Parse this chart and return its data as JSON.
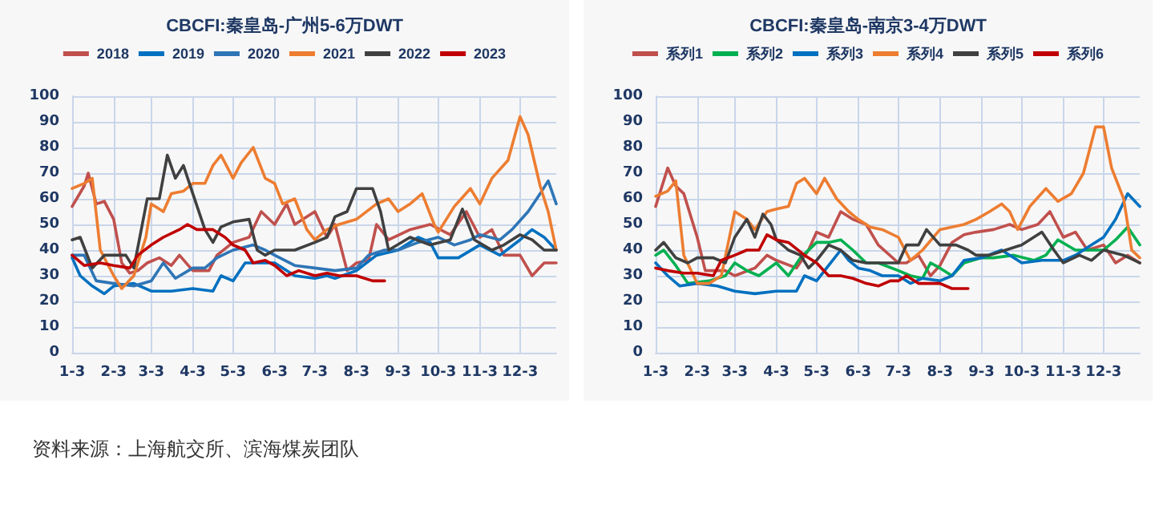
{
  "chart_data": [
    {
      "type": "line",
      "title": "CBCFI:秦皇岛-广州5-6万DWT",
      "xlim": [
        "--01-03",
        "--12-30"
      ],
      "xticks": [
        {
          "value": "--01-03",
          "label": "1-3"
        },
        {
          "value": "--02-03",
          "label": "2-3"
        },
        {
          "value": "--03-03",
          "label": "3-3"
        },
        {
          "value": "--04-03",
          "label": "4-3"
        },
        {
          "value": "--05-03",
          "label": "5-3"
        },
        {
          "value": "--06-03",
          "label": "6-3"
        },
        {
          "value": "--07-03",
          "label": "7-3"
        },
        {
          "value": "--08-03",
          "label": "8-3"
        },
        {
          "value": "--09-03",
          "label": "9-3"
        },
        {
          "value": "--10-03",
          "label": "10-3"
        },
        {
          "value": "--11-03",
          "label": "11-3"
        },
        {
          "value": "--12-03",
          "label": "12-3"
        }
      ],
      "ylim": [
        0,
        100
      ],
      "yticks": [
        0,
        10,
        20,
        30,
        40,
        50,
        60,
        70,
        80,
        90,
        100
      ],
      "grid": true,
      "legend": "top",
      "marker": "none",
      "line_style": "solid",
      "annotations": [
        "资料来源：上海航交所、滨海煤炭团队"
      ],
      "series": [
        {
          "name": "2018",
          "color": "#c0504d",
          "x": [
            "--01-03",
            "--01-12",
            "--01-15",
            "--01-21",
            "--01-27",
            "--02-03",
            "--02-09",
            "--02-15",
            "--02-21",
            "--02-28",
            "--03-09",
            "--03-18",
            "--03-24",
            "--04-03",
            "--04-15",
            "--04-21",
            "--05-03",
            "--05-15",
            "--05-24",
            "--06-03",
            "--06-12",
            "--06-18",
            "--07-03",
            "--07-12",
            "--07-18",
            "--07-27",
            "--08-03",
            "--08-12",
            "--08-18",
            "--08-27",
            "--09-12",
            "--09-27",
            "--10-12",
            "--10-24",
            "--11-03",
            "--11-12",
            "--11-21",
            "--12-03",
            "--12-12",
            "--12-21",
            "--12-30"
          ],
          "values": [
            57,
            65,
            70,
            58,
            59,
            52,
            35,
            31,
            32,
            35,
            37,
            34,
            38,
            32,
            32,
            38,
            43,
            45,
            55,
            50,
            58,
            50,
            55,
            45,
            50,
            32,
            35,
            36,
            50,
            44,
            48,
            50,
            46,
            55,
            45,
            48,
            38,
            38,
            30,
            35,
            35
          ]
        },
        {
          "name": "2019",
          "color": "#0070c0",
          "x": [
            "--01-03",
            "--01-09",
            "--01-18",
            "--01-27",
            "--02-03",
            "--02-18",
            "--03-03",
            "--03-18",
            "--04-03",
            "--04-18",
            "--04-24",
            "--05-03",
            "--05-12",
            "--05-24",
            "--06-03",
            "--06-18",
            "--07-03",
            "--07-12",
            "--07-18",
            "--08-03",
            "--08-18",
            "--09-03",
            "--09-18",
            "--09-27",
            "--10-03",
            "--10-18",
            "--11-03",
            "--11-18",
            "--12-03",
            "--12-12",
            "--12-21",
            "--12-30"
          ],
          "values": [
            37,
            30,
            26,
            23,
            26,
            27,
            24,
            24,
            25,
            24,
            30,
            28,
            35,
            35,
            35,
            30,
            29,
            30,
            29,
            32,
            38,
            40,
            45,
            43,
            37,
            37,
            42,
            38,
            44,
            48,
            45,
            40
          ]
        },
        {
          "name": "2020",
          "color": "#2e75b6",
          "x": [
            "--01-03",
            "--01-12",
            "--01-21",
            "--02-03",
            "--02-18",
            "--03-03",
            "--03-12",
            "--03-21",
            "--04-03",
            "--04-12",
            "--04-21",
            "--05-03",
            "--05-18",
            "--05-27",
            "--06-03",
            "--06-18",
            "--07-03",
            "--07-18",
            "--08-03",
            "--08-12",
            "--08-24",
            "--09-03",
            "--09-18",
            "--10-03",
            "--10-15",
            "--10-27",
            "--11-03",
            "--11-18",
            "--11-27",
            "--12-09",
            "--12-18",
            "--12-24",
            "--12-30"
          ],
          "values": [
            38,
            38,
            28,
            27,
            26,
            28,
            35,
            29,
            33,
            33,
            37,
            40,
            42,
            40,
            38,
            34,
            33,
            32,
            33,
            38,
            40,
            40,
            43,
            45,
            42,
            44,
            46,
            44,
            48,
            55,
            62,
            67,
            58
          ]
        },
        {
          "name": "2021",
          "color": "#ed7d31",
          "x": [
            "--01-03",
            "--01-12",
            "--01-18",
            "--01-24",
            "--02-03",
            "--02-09",
            "--02-18",
            "--02-27",
            "--03-03",
            "--03-12",
            "--03-18",
            "--03-27",
            "--04-03",
            "--04-12",
            "--04-18",
            "--04-24",
            "--05-03",
            "--05-09",
            "--05-18",
            "--05-27",
            "--06-03",
            "--06-09",
            "--06-18",
            "--06-27",
            "--07-03",
            "--07-12",
            "--07-21",
            "--08-03",
            "--08-18",
            "--08-27",
            "--09-03",
            "--09-12",
            "--09-21",
            "--09-30",
            "--10-03",
            "--10-15",
            "--10-27",
            "--11-03",
            "--11-12",
            "--11-24",
            "--12-03",
            "--12-09",
            "--12-18",
            "--12-24",
            "--12-30"
          ],
          "values": [
            64,
            66,
            68,
            40,
            30,
            25,
            30,
            45,
            58,
            55,
            62,
            63,
            66,
            66,
            73,
            77,
            68,
            74,
            80,
            68,
            66,
            58,
            60,
            48,
            44,
            48,
            50,
            52,
            58,
            60,
            55,
            58,
            62,
            50,
            47,
            57,
            64,
            58,
            68,
            75,
            92,
            85,
            65,
            55,
            40
          ]
        },
        {
          "name": "2022",
          "color": "#404040",
          "x": [
            "--01-03",
            "--01-09",
            "--01-18",
            "--01-27",
            "--02-03",
            "--02-12",
            "--02-18",
            "--02-28",
            "--03-09",
            "--03-15",
            "--03-21",
            "--03-27",
            "--04-03",
            "--04-12",
            "--04-18",
            "--04-24",
            "--05-03",
            "--05-15",
            "--05-21",
            "--05-27",
            "--06-03",
            "--06-18",
            "--07-03",
            "--07-12",
            "--07-18",
            "--07-27",
            "--08-03",
            "--08-15",
            "--08-21",
            "--08-27",
            "--09-12",
            "--09-27",
            "--10-12",
            "--10-21",
            "--10-30",
            "--11-12",
            "--11-21",
            "--12-03",
            "--12-12",
            "--12-21",
            "--12-30"
          ],
          "values": [
            44,
            45,
            33,
            38,
            38,
            38,
            33,
            60,
            60,
            77,
            68,
            73,
            62,
            48,
            43,
            49,
            51,
            52,
            40,
            38,
            40,
            40,
            43,
            45,
            53,
            55,
            64,
            64,
            55,
            40,
            45,
            42,
            44,
            56,
            44,
            40,
            42,
            46,
            44,
            40,
            40
          ]
        },
        {
          "name": "2023",
          "color": "#c00000",
          "x": [
            "--01-03",
            "--01-12",
            "--01-24",
            "--02-03",
            "--02-15",
            "--02-21",
            "--03-03",
            "--03-12",
            "--03-24",
            "--03-30",
            "--04-06",
            "--04-18",
            "--04-27",
            "--05-03",
            "--05-12",
            "--05-18",
            "--05-27",
            "--06-03",
            "--06-12",
            "--06-21",
            "--07-03",
            "--07-12",
            "--07-21",
            "--08-03",
            "--08-15",
            "--08-24"
          ],
          "values": [
            38,
            34,
            35,
            34,
            33,
            38,
            42,
            45,
            48,
            50,
            48,
            48,
            45,
            42,
            40,
            35,
            36,
            34,
            30,
            32,
            30,
            31,
            30,
            30,
            28,
            28
          ]
        }
      ]
    },
    {
      "type": "line",
      "title": "CBCFI:秦皇岛-南京3-4万DWT",
      "xlim": [
        "--01-03",
        "--12-30"
      ],
      "xticks": [
        {
          "value": "--01-03",
          "label": "1-3"
        },
        {
          "value": "--02-03",
          "label": "2-3"
        },
        {
          "value": "--03-03",
          "label": "3-3"
        },
        {
          "value": "--04-03",
          "label": "4-3"
        },
        {
          "value": "--05-03",
          "label": "5-3"
        },
        {
          "value": "--06-03",
          "label": "6-3"
        },
        {
          "value": "--07-03",
          "label": "7-3"
        },
        {
          "value": "--08-03",
          "label": "8-3"
        },
        {
          "value": "--09-03",
          "label": "9-3"
        },
        {
          "value": "--10-03",
          "label": "10-3"
        },
        {
          "value": "--11-03",
          "label": "11-3"
        },
        {
          "value": "--12-03",
          "label": "12-3"
        }
      ],
      "ylim": [
        0,
        100
      ],
      "yticks": [
        0,
        10,
        20,
        30,
        40,
        50,
        60,
        70,
        80,
        90,
        100
      ],
      "grid": true,
      "legend": "top",
      "marker": "none",
      "line_style": "solid",
      "series": [
        {
          "name": "系列1",
          "color": "#c0504d",
          "x": [
            "--01-03",
            "--01-12",
            "--01-18",
            "--01-24",
            "--02-03",
            "--02-09",
            "--02-18",
            "--02-24",
            "--03-03",
            "--03-18",
            "--03-27",
            "--04-03",
            "--04-18",
            "--04-27",
            "--05-03",
            "--05-12",
            "--05-21",
            "--05-30",
            "--06-09",
            "--06-18",
            "--07-03",
            "--07-09",
            "--07-18",
            "--07-27",
            "--08-03",
            "--08-12",
            "--08-21",
            "--08-30",
            "--09-12",
            "--09-24",
            "--10-03",
            "--10-15",
            "--10-24",
            "--11-03",
            "--11-12",
            "--11-21",
            "--12-03",
            "--12-12",
            "--12-21",
            "--12-30"
          ],
          "values": [
            57,
            72,
            65,
            62,
            45,
            32,
            32,
            32,
            30,
            33,
            38,
            36,
            33,
            40,
            47,
            45,
            55,
            52,
            50,
            42,
            35,
            35,
            38,
            30,
            34,
            43,
            46,
            47,
            48,
            50,
            48,
            50,
            55,
            45,
            47,
            40,
            42,
            35,
            38,
            35
          ]
        },
        {
          "name": "系列2",
          "color": "#00b050",
          "x": [
            "--01-03",
            "--01-09",
            "--01-18",
            "--01-27",
            "--02-12",
            "--02-24",
            "--03-03",
            "--03-12",
            "--03-21",
            "--04-03",
            "--04-12",
            "--04-21",
            "--05-03",
            "--05-12",
            "--05-21",
            "--05-30",
            "--06-09",
            "--06-18",
            "--07-03",
            "--07-12",
            "--07-21",
            "--07-27",
            "--08-03",
            "--08-12",
            "--08-21",
            "--09-03",
            "--09-12",
            "--09-27",
            "--10-12",
            "--10-21",
            "--10-30",
            "--11-12",
            "--11-24",
            "--12-03",
            "--12-12",
            "--12-21",
            "--12-30"
          ],
          "values": [
            38,
            40,
            34,
            27,
            28,
            30,
            35,
            32,
            30,
            35,
            30,
            37,
            43,
            43,
            44,
            40,
            35,
            35,
            32,
            30,
            29,
            35,
            33,
            30,
            35,
            37,
            37,
            38,
            36,
            38,
            44,
            40,
            40,
            40,
            44,
            49,
            42
          ]
        },
        {
          "name": "系列3",
          "color": "#0070c0",
          "x": [
            "--01-03",
            "--01-12",
            "--01-21",
            "--02-03",
            "--02-18",
            "--03-03",
            "--03-18",
            "--04-03",
            "--04-18",
            "--04-24",
            "--05-03",
            "--05-12",
            "--05-21",
            "--05-27",
            "--06-03",
            "--06-12",
            "--06-21",
            "--07-03",
            "--07-12",
            "--07-21",
            "--08-03",
            "--08-12",
            "--08-21",
            "--09-03",
            "--09-18",
            "--10-03",
            "--10-18",
            "--11-03",
            "--11-12",
            "--11-24",
            "--12-03",
            "--12-12",
            "--12-21",
            "--12-30"
          ],
          "values": [
            35,
            30,
            26,
            27,
            26,
            24,
            23,
            24,
            24,
            30,
            28,
            34,
            40,
            36,
            33,
            32,
            30,
            30,
            27,
            29,
            28,
            30,
            36,
            37,
            40,
            35,
            36,
            36,
            38,
            42,
            45,
            52,
            62,
            57
          ]
        },
        {
          "name": "系列4",
          "color": "#ed7d31",
          "x": [
            "--01-03",
            "--01-12",
            "--01-18",
            "--01-24",
            "--02-03",
            "--02-12",
            "--02-21",
            "--02-27",
            "--03-03",
            "--03-12",
            "--03-18",
            "--03-27",
            "--04-03",
            "--04-12",
            "--04-18",
            "--04-24",
            "--05-03",
            "--05-09",
            "--05-18",
            "--05-27",
            "--06-03",
            "--06-12",
            "--06-21",
            "--07-03",
            "--07-12",
            "--07-21",
            "--08-03",
            "--08-12",
            "--08-21",
            "--08-30",
            "--09-09",
            "--09-18",
            "--09-24",
            "--09-30",
            "--10-09",
            "--10-21",
            "--10-30",
            "--11-09",
            "--11-18",
            "--11-27",
            "--12-03",
            "--12-09",
            "--12-18",
            "--12-24",
            "--12-30"
          ],
          "values": [
            61,
            63,
            67,
            38,
            27,
            27,
            30,
            45,
            55,
            52,
            48,
            55,
            56,
            57,
            66,
            68,
            62,
            68,
            60,
            55,
            52,
            49,
            48,
            45,
            36,
            40,
            48,
            49,
            50,
            52,
            55,
            58,
            55,
            48,
            57,
            64,
            59,
            62,
            70,
            88,
            88,
            72,
            60,
            40,
            37
          ]
        },
        {
          "name": "系列5",
          "color": "#404040",
          "x": [
            "--01-03",
            "--01-09",
            "--01-18",
            "--01-27",
            "--02-03",
            "--02-15",
            "--02-24",
            "--03-03",
            "--03-12",
            "--03-18",
            "--03-24",
            "--03-30",
            "--04-03",
            "--04-12",
            "--04-21",
            "--04-27",
            "--05-03",
            "--05-12",
            "--05-21",
            "--05-30",
            "--06-09",
            "--06-21",
            "--07-03",
            "--07-09",
            "--07-18",
            "--07-24",
            "--08-03",
            "--08-15",
            "--08-24",
            "--08-30",
            "--09-09",
            "--09-21",
            "--10-03",
            "--10-18",
            "--10-27",
            "--11-03",
            "--11-15",
            "--11-24",
            "--12-03",
            "--12-18",
            "--12-30"
          ],
          "values": [
            40,
            43,
            37,
            35,
            37,
            37,
            35,
            45,
            52,
            45,
            54,
            50,
            44,
            40,
            38,
            33,
            36,
            42,
            40,
            36,
            35,
            35,
            35,
            42,
            42,
            48,
            42,
            42,
            40,
            38,
            38,
            40,
            42,
            47,
            40,
            35,
            38,
            36,
            40,
            38,
            35
          ]
        },
        {
          "name": "系列6",
          "color": "#c00000",
          "x": [
            "--01-03",
            "--01-12",
            "--01-24",
            "--02-03",
            "--02-15",
            "--02-21",
            "--03-03",
            "--03-12",
            "--03-21",
            "--03-27",
            "--04-03",
            "--04-12",
            "--04-24",
            "--05-03",
            "--05-12",
            "--05-21",
            "--05-30",
            "--06-09",
            "--06-18",
            "--06-27",
            "--07-03",
            "--07-09",
            "--07-18",
            "--08-03",
            "--08-12",
            "--08-24"
          ],
          "values": [
            33,
            32,
            31,
            31,
            30,
            36,
            38,
            40,
            40,
            46,
            44,
            43,
            38,
            35,
            30,
            30,
            29,
            27,
            26,
            28,
            28,
            30,
            27,
            27,
            25,
            25
          ]
        }
      ]
    }
  ]
}
